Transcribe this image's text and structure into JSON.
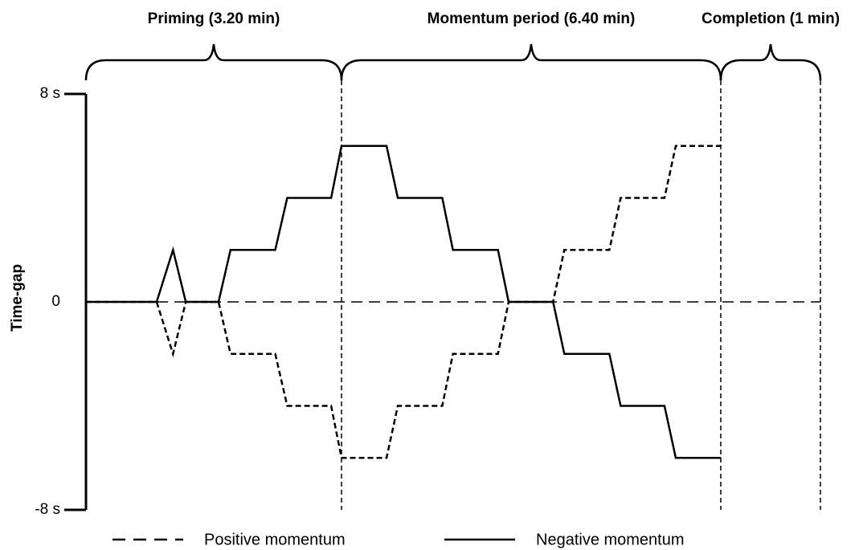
{
  "chart_data": {
    "type": "line",
    "y_label": "Time-gap",
    "phases": [
      {
        "label": "Priming (3.20 min)",
        "duration": 3.2
      },
      {
        "label": "Momentum period (6.40 min)",
        "duration": 6.4
      },
      {
        "label": "Completion (1 min)",
        "duration": 1
      }
    ],
    "ylim": [
      -8,
      8
    ],
    "yticks": [
      {
        "value": -8,
        "label": "-8 s"
      },
      0,
      {
        "value": 8,
        "label": "8 s"
      }
    ],
    "series": [
      {
        "name": "Positive momentum",
        "color": "#000000",
        "dashed": true,
        "x": [
          0,
          0.885,
          1.09,
          1.25,
          1.66,
          1.81,
          2.37,
          2.52,
          3.07,
          3.2,
          3.96,
          4.15,
          4.9,
          5.08,
          5.84,
          6.02,
          6.77,
          6.96,
          7.72,
          7.91,
          8.65,
          8.84,
          9.6
        ],
        "values": [
          0,
          0,
          -2,
          0,
          0,
          -2,
          -2,
          -4,
          -4,
          -6,
          -6,
          -4,
          -4,
          -2,
          -2,
          0,
          0,
          2,
          2,
          4,
          4,
          6,
          6
        ]
      },
      {
        "name": "Negative momentum",
        "color": "#000000",
        "dashed": false,
        "x": [
          0,
          0.885,
          1.09,
          1.25,
          1.66,
          1.81,
          2.37,
          2.52,
          3.07,
          3.2,
          3.96,
          4.15,
          4.9,
          5.08,
          5.84,
          6.02,
          6.77,
          6.96,
          7.72,
          7.91,
          8.65,
          8.84,
          9.6
        ],
        "values": [
          0,
          0,
          2,
          0,
          0,
          2,
          2,
          4,
          4,
          6,
          6,
          4,
          4,
          2,
          2,
          0,
          0,
          -2,
          -2,
          -4,
          -4,
          -6,
          -6
        ]
      }
    ]
  }
}
